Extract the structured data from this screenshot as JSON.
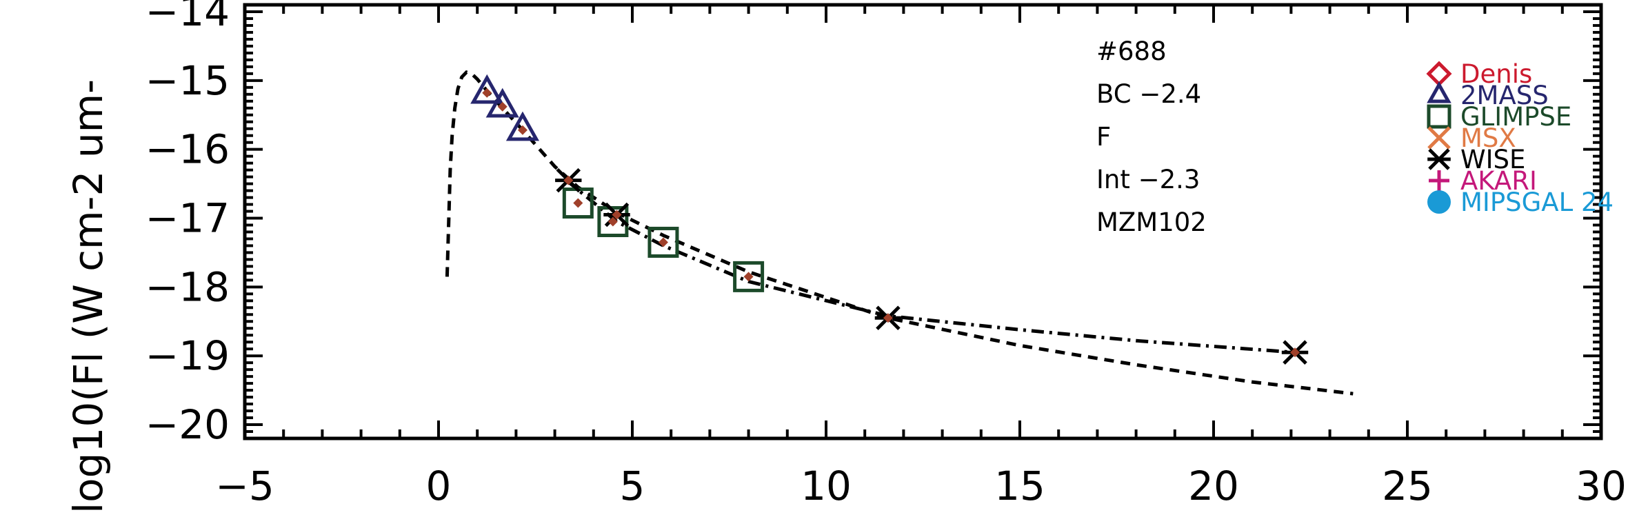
{
  "chart_data": {
    "type": "scatter",
    "title": "",
    "xlabel": "",
    "ylabel": "log10(Fl (W cm-2 um-",
    "xlim": [
      -5,
      30
    ],
    "ylim": [
      -20.2,
      -13.9
    ],
    "x_ticks": [
      -5,
      0,
      5,
      10,
      15,
      20,
      25,
      30
    ],
    "x_tick_labels": [
      "−5",
      "0",
      "5",
      "10",
      "15",
      "20",
      "25",
      "30"
    ],
    "y_ticks": [
      -20,
      -19,
      -18,
      -17,
      -16,
      -15,
      -14
    ],
    "y_tick_labels": [
      "−20",
      "−19",
      "−18",
      "−17",
      "−16",
      "−15",
      "−14"
    ],
    "annotations": [
      "#688",
      "BC −2.4",
      "F",
      "Int −2.3",
      "MZM102"
    ],
    "legend": {
      "placement": "top-right",
      "entries": [
        {
          "label": "Denis",
          "marker": "diamond",
          "color": "#cc1a2e"
        },
        {
          "label": "2MASS",
          "marker": "triangle",
          "color": "#26266e"
        },
        {
          "label": "GLIMPSE",
          "marker": "square",
          "color": "#1c4a2a"
        },
        {
          "label": "MSX",
          "marker": "x",
          "color": "#e07a45"
        },
        {
          "label": "WISE",
          "marker": "asterisk",
          "color": "#000000"
        },
        {
          "label": "AKARI",
          "marker": "plus",
          "color": "#c4187a"
        },
        {
          "label": "MIPSGAL 24",
          "marker": "circle",
          "color": "#1a9ad6"
        }
      ]
    },
    "series": [
      {
        "marker": "triangle",
        "color": "#26266e",
        "x": [
          1.25,
          1.65,
          2.17
        ],
        "y": [
          -15.18,
          -15.38,
          -15.72
        ]
      },
      {
        "marker": "square",
        "color": "#1c4a2a",
        "x": [
          3.6,
          4.5,
          5.8,
          8.0
        ],
        "y": [
          -16.78,
          -17.05,
          -17.35,
          -17.85
        ]
      },
      {
        "marker": "asterisk",
        "color": "#000000",
        "x": [
          3.35,
          4.6,
          11.6,
          22.1
        ],
        "y": [
          -16.45,
          -16.95,
          -18.45,
          -18.95
        ]
      },
      {
        "marker": "small-diamond",
        "color": "#a0402a",
        "x": [
          1.25,
          1.65,
          2.17,
          3.35,
          3.6,
          4.5,
          4.6,
          5.8,
          8.0,
          11.6,
          22.1
        ],
        "y": [
          -15.18,
          -15.38,
          -15.72,
          -16.45,
          -16.78,
          -17.05,
          -16.95,
          -17.35,
          -17.85,
          -18.45,
          -18.95
        ]
      }
    ],
    "curves": [
      {
        "style": "dashed",
        "x": [
          0.22,
          0.26,
          0.3,
          0.35,
          0.42,
          0.5,
          0.6,
          0.72,
          0.85,
          1.0,
          1.25,
          1.65,
          2.17,
          3.0,
          3.6,
          4.6,
          5.8,
          8.0,
          11.6,
          15.0,
          18.0,
          21.0,
          23.6
        ],
        "y": [
          -17.85,
          -17.1,
          -16.3,
          -15.8,
          -15.4,
          -15.12,
          -14.95,
          -14.88,
          -14.9,
          -14.98,
          -15.15,
          -15.4,
          -15.72,
          -16.25,
          -16.55,
          -16.92,
          -17.25,
          -17.78,
          -18.45,
          -18.85,
          -19.13,
          -19.38,
          -19.55
        ]
      },
      {
        "style": "dashdot",
        "x": [
          3.3,
          4.6,
          5.8,
          8.0,
          11.6,
          15.0,
          18.0,
          22.1
        ],
        "y": [
          -16.45,
          -17.05,
          -17.4,
          -17.92,
          -18.42,
          -18.62,
          -18.78,
          -18.95
        ]
      }
    ]
  }
}
